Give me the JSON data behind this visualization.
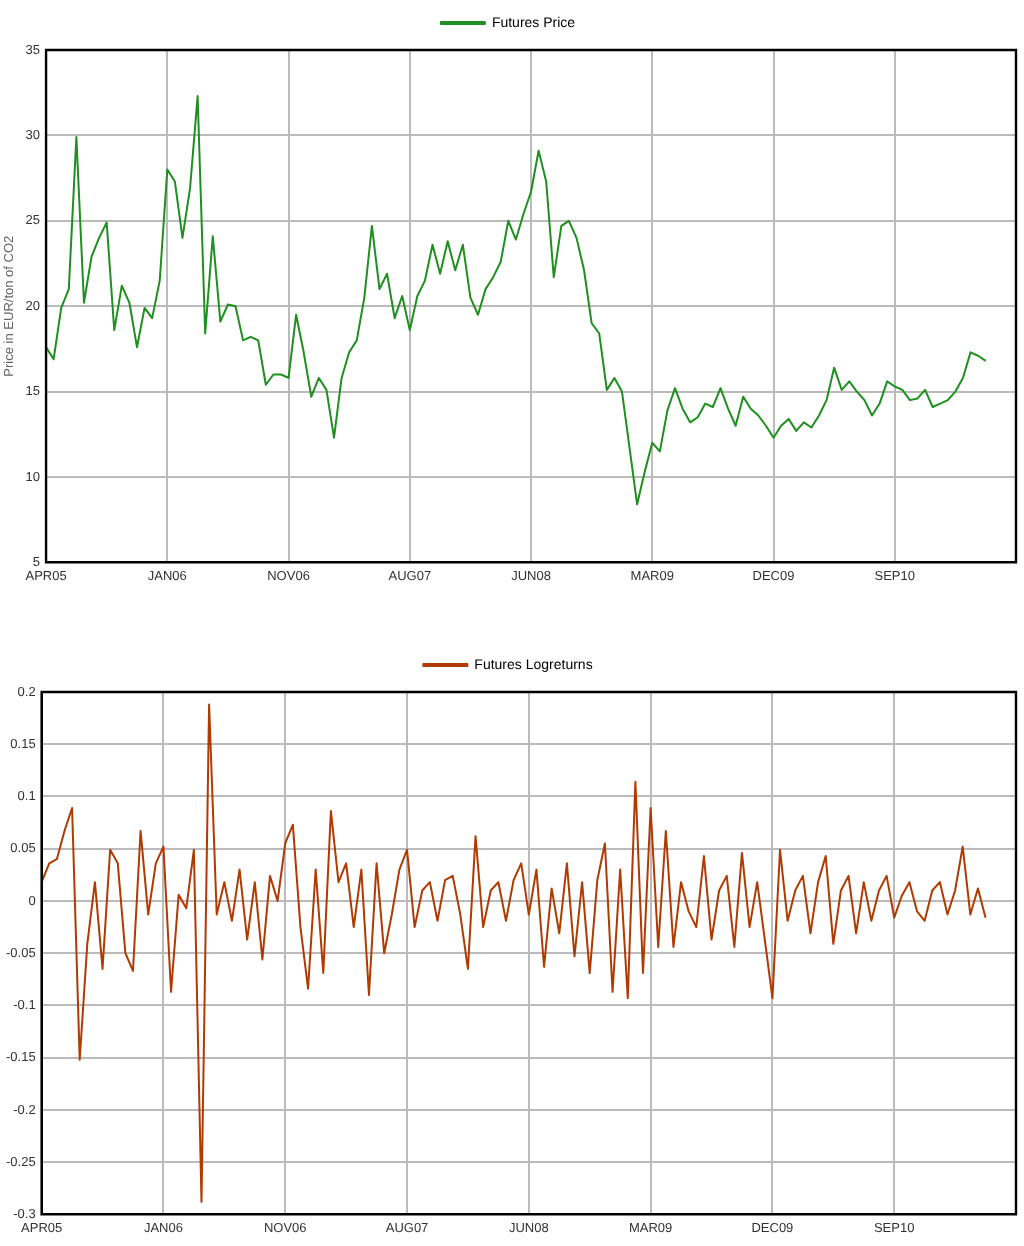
{
  "chart_data": [
    {
      "type": "line",
      "ylabel": "Price in EUR/ton of CO2",
      "ylim": [
        5,
        35
      ],
      "yticks": [
        5,
        10,
        15,
        20,
        25,
        30,
        35
      ],
      "grid": true,
      "legend": "top",
      "categories": [
        "APR05",
        null,
        null,
        null,
        null,
        null,
        null,
        null,
        null,
        null,
        null,
        null,
        null,
        null,
        null,
        null,
        "JAN06",
        null,
        null,
        null,
        null,
        null,
        null,
        null,
        null,
        null,
        null,
        null,
        null,
        null,
        null,
        null,
        "NOV06",
        null,
        null,
        null,
        null,
        null,
        null,
        null,
        null,
        null,
        null,
        null,
        null,
        null,
        null,
        null,
        "AUG07",
        null,
        null,
        null,
        null,
        null,
        null,
        null,
        null,
        null,
        null,
        null,
        null,
        null,
        null,
        null,
        "JUN08",
        null,
        null,
        null,
        null,
        null,
        null,
        null,
        null,
        null,
        null,
        null,
        null,
        null,
        null,
        null,
        "MAR09",
        null,
        null,
        null,
        null,
        null,
        null,
        null,
        null,
        null,
        null,
        null,
        null,
        null,
        null,
        null,
        "DEC09",
        null,
        null,
        null,
        null,
        null,
        null,
        null,
        null,
        null,
        null,
        null,
        null,
        null,
        null,
        null,
        "SEP10",
        null,
        null,
        null,
        null,
        null,
        null,
        null,
        null,
        null,
        null,
        null,
        null,
        null,
        null,
        null,
        null
      ],
      "series": [
        {
          "name": "Futures Price",
          "color": "#1f8f1f",
          "values": [
            17.6,
            16.9,
            19.9,
            21,
            29.9,
            20.2,
            22.9,
            24,
            24.9,
            18.6,
            21.2,
            20.2,
            17.6,
            19.9,
            19.3,
            21.5,
            28,
            27.3,
            24,
            26.9,
            32.3,
            18.4,
            24.1,
            19.1,
            20.1,
            20,
            18,
            18.2,
            18,
            15.4,
            16,
            16,
            15.8,
            19.5,
            17.3,
            14.7,
            15.8,
            15.1,
            12.3,
            15.8,
            17.3,
            18,
            20.5,
            24.7,
            21,
            21.9,
            19.3,
            20.6,
            18.6,
            20.6,
            21.5,
            23.6,
            21.9,
            23.8,
            22.1,
            23.6,
            20.5,
            19.5,
            21,
            21.7,
            22.6,
            25,
            23.9,
            25.4,
            26.7,
            29.1,
            27.3,
            21.7,
            24.7,
            25,
            24,
            22.1,
            19,
            18.4,
            15.1,
            15.8,
            15,
            11.7,
            8.4,
            10.3,
            12,
            11.5,
            13.9,
            15.2,
            14,
            13.2,
            13.5,
            14.3,
            14.1,
            15.2,
            14,
            13,
            14.7,
            14,
            13.6,
            13,
            12.3,
            13,
            13.4,
            12.7,
            13.2,
            12.9,
            13.6,
            14.5,
            16.4,
            15.1,
            15.6,
            15,
            14.5,
            13.6,
            14.3,
            15.6,
            15.3,
            15.1,
            14.5,
            14.6,
            15.1,
            14.1,
            14.3,
            14.5,
            15,
            15.8,
            17.3,
            17.1,
            16.8,
            null,
            null,
            null,
            null
          ]
        }
      ]
    },
    {
      "type": "line",
      "ylim": [
        -0.3,
        0.2
      ],
      "yticks": [
        -0.3,
        -0.25,
        -0.2,
        -0.15,
        -0.1,
        -0.05,
        0,
        0.05,
        0.1,
        0.15,
        0.2
      ],
      "grid": true,
      "legend": "top",
      "categories": [
        "APR05",
        null,
        null,
        null,
        null,
        null,
        null,
        null,
        null,
        null,
        null,
        null,
        null,
        null,
        null,
        null,
        "JAN06",
        null,
        null,
        null,
        null,
        null,
        null,
        null,
        null,
        null,
        null,
        null,
        null,
        null,
        null,
        null,
        "NOV06",
        null,
        null,
        null,
        null,
        null,
        null,
        null,
        null,
        null,
        null,
        null,
        null,
        null,
        null,
        null,
        "AUG07",
        null,
        null,
        null,
        null,
        null,
        null,
        null,
        null,
        null,
        null,
        null,
        null,
        null,
        null,
        null,
        "JUN08",
        null,
        null,
        null,
        null,
        null,
        null,
        null,
        null,
        null,
        null,
        null,
        null,
        null,
        null,
        null,
        "MAR09",
        null,
        null,
        null,
        null,
        null,
        null,
        null,
        null,
        null,
        null,
        null,
        null,
        null,
        null,
        null,
        "DEC09",
        null,
        null,
        null,
        null,
        null,
        null,
        null,
        null,
        null,
        null,
        null,
        null,
        null,
        null,
        null,
        "SEP10",
        null,
        null,
        null,
        null,
        null,
        null,
        null,
        null,
        null,
        null,
        null,
        null,
        null,
        null,
        null,
        null
      ],
      "series": [
        {
          "name": "Futures Logreturns",
          "color": "#b03a00",
          "values": [
            0.018,
            0.036,
            0.04,
            0.067,
            0.089,
            -0.152,
            -0.041,
            0.018,
            -0.065,
            0.049,
            0.036,
            -0.05,
            -0.067,
            0.067,
            -0.013,
            0.036,
            0.052,
            -0.087,
            0.006,
            -0.007,
            0.049,
            -0.288,
            0.188,
            -0.013,
            0.018,
            -0.019,
            0.03,
            -0.037,
            0.018,
            -0.056,
            0.024,
            0,
            0.055,
            0.073,
            -0.025,
            -0.084,
            0.03,
            -0.069,
            0.086,
            0.018,
            0.036,
            -0.025,
            0.03,
            -0.09,
            0.036,
            -0.05,
            -0.013,
            0.03,
            0.049,
            -0.025,
            0.01,
            0.018,
            -0.019,
            0.02,
            0.024,
            -0.013,
            -0.065,
            0.062,
            -0.025,
            0.01,
            0.018,
            -0.019,
            0.02,
            0.036,
            -0.013,
            0.03,
            -0.063,
            0.012,
            -0.031,
            0.036,
            -0.053,
            0.018,
            -0.069,
            0.02,
            0.055,
            -0.087,
            0.03,
            -0.093,
            0.114,
            -0.069,
            0.089,
            -0.044,
            0.067,
            -0.044,
            0.018,
            -0.01,
            -0.025,
            0.043,
            -0.037,
            0.01,
            0.024,
            -0.044,
            0.046,
            -0.025,
            0.018,
            -0.037,
            -0.093,
            0.049,
            -0.019,
            0.01,
            0.024,
            -0.031,
            0.018,
            0.043,
            -0.041,
            0.01,
            0.024,
            -0.031,
            0.018,
            -0.019,
            0.01,
            0.024,
            -0.016,
            0.005,
            0.018,
            -0.01,
            -0.019,
            0.01,
            0.018,
            -0.013,
            0.01,
            0.052,
            -0.013,
            0.012,
            -0.016,
            null,
            null,
            null,
            null
          ]
        }
      ]
    }
  ]
}
